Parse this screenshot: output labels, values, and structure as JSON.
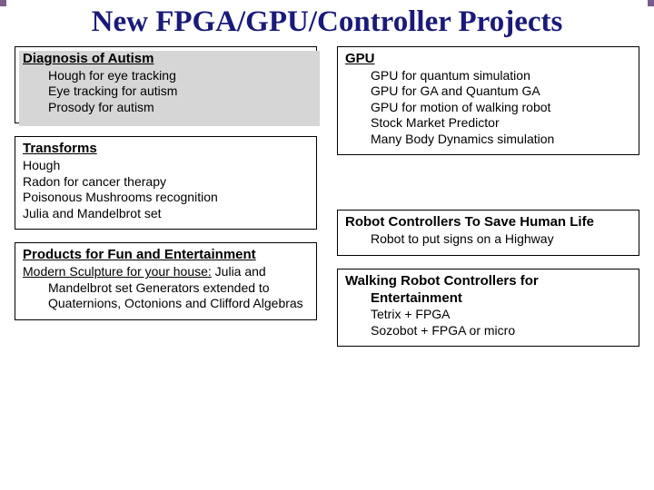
{
  "title": "New FPGA/GPU/Controller Projects",
  "left": {
    "box1": {
      "title": "Diagnosis of Autism",
      "items": [
        "Hough for eye tracking",
        "Eye tracking for autism",
        "Prosody for autism"
      ]
    },
    "box2": {
      "title": "Transforms",
      "items": [
        "Hough",
        "Radon for cancer therapy",
        "Poisonous Mushrooms recognition",
        "Julia and Mandelbrot set"
      ]
    },
    "box3": {
      "title": "Products for Fun and Entertainment",
      "subhead": "Modern Sculpture for your house:",
      "text": " Julia and Mandelbrot set Generators extended to Quaternions, Octonions and Clifford Algebras"
    }
  },
  "right": {
    "box1": {
      "title": "GPU",
      "items": [
        "GPU for quantum simulation",
        "GPU for GA and Quantum GA",
        "GPU for motion of walking robot",
        "Stock Market Predictor",
        "Many Body Dynamics simulation"
      ]
    },
    "box2": {
      "title": "Robot Controllers To Save Human Life",
      "items": [
        "Robot to put signs on a Highway"
      ]
    },
    "box3": {
      "title": "Walking Robot Controllers for Entertainment",
      "items": [
        "Tetrix + FPGA",
        "Sozobot + FPGA or micro"
      ]
    }
  }
}
